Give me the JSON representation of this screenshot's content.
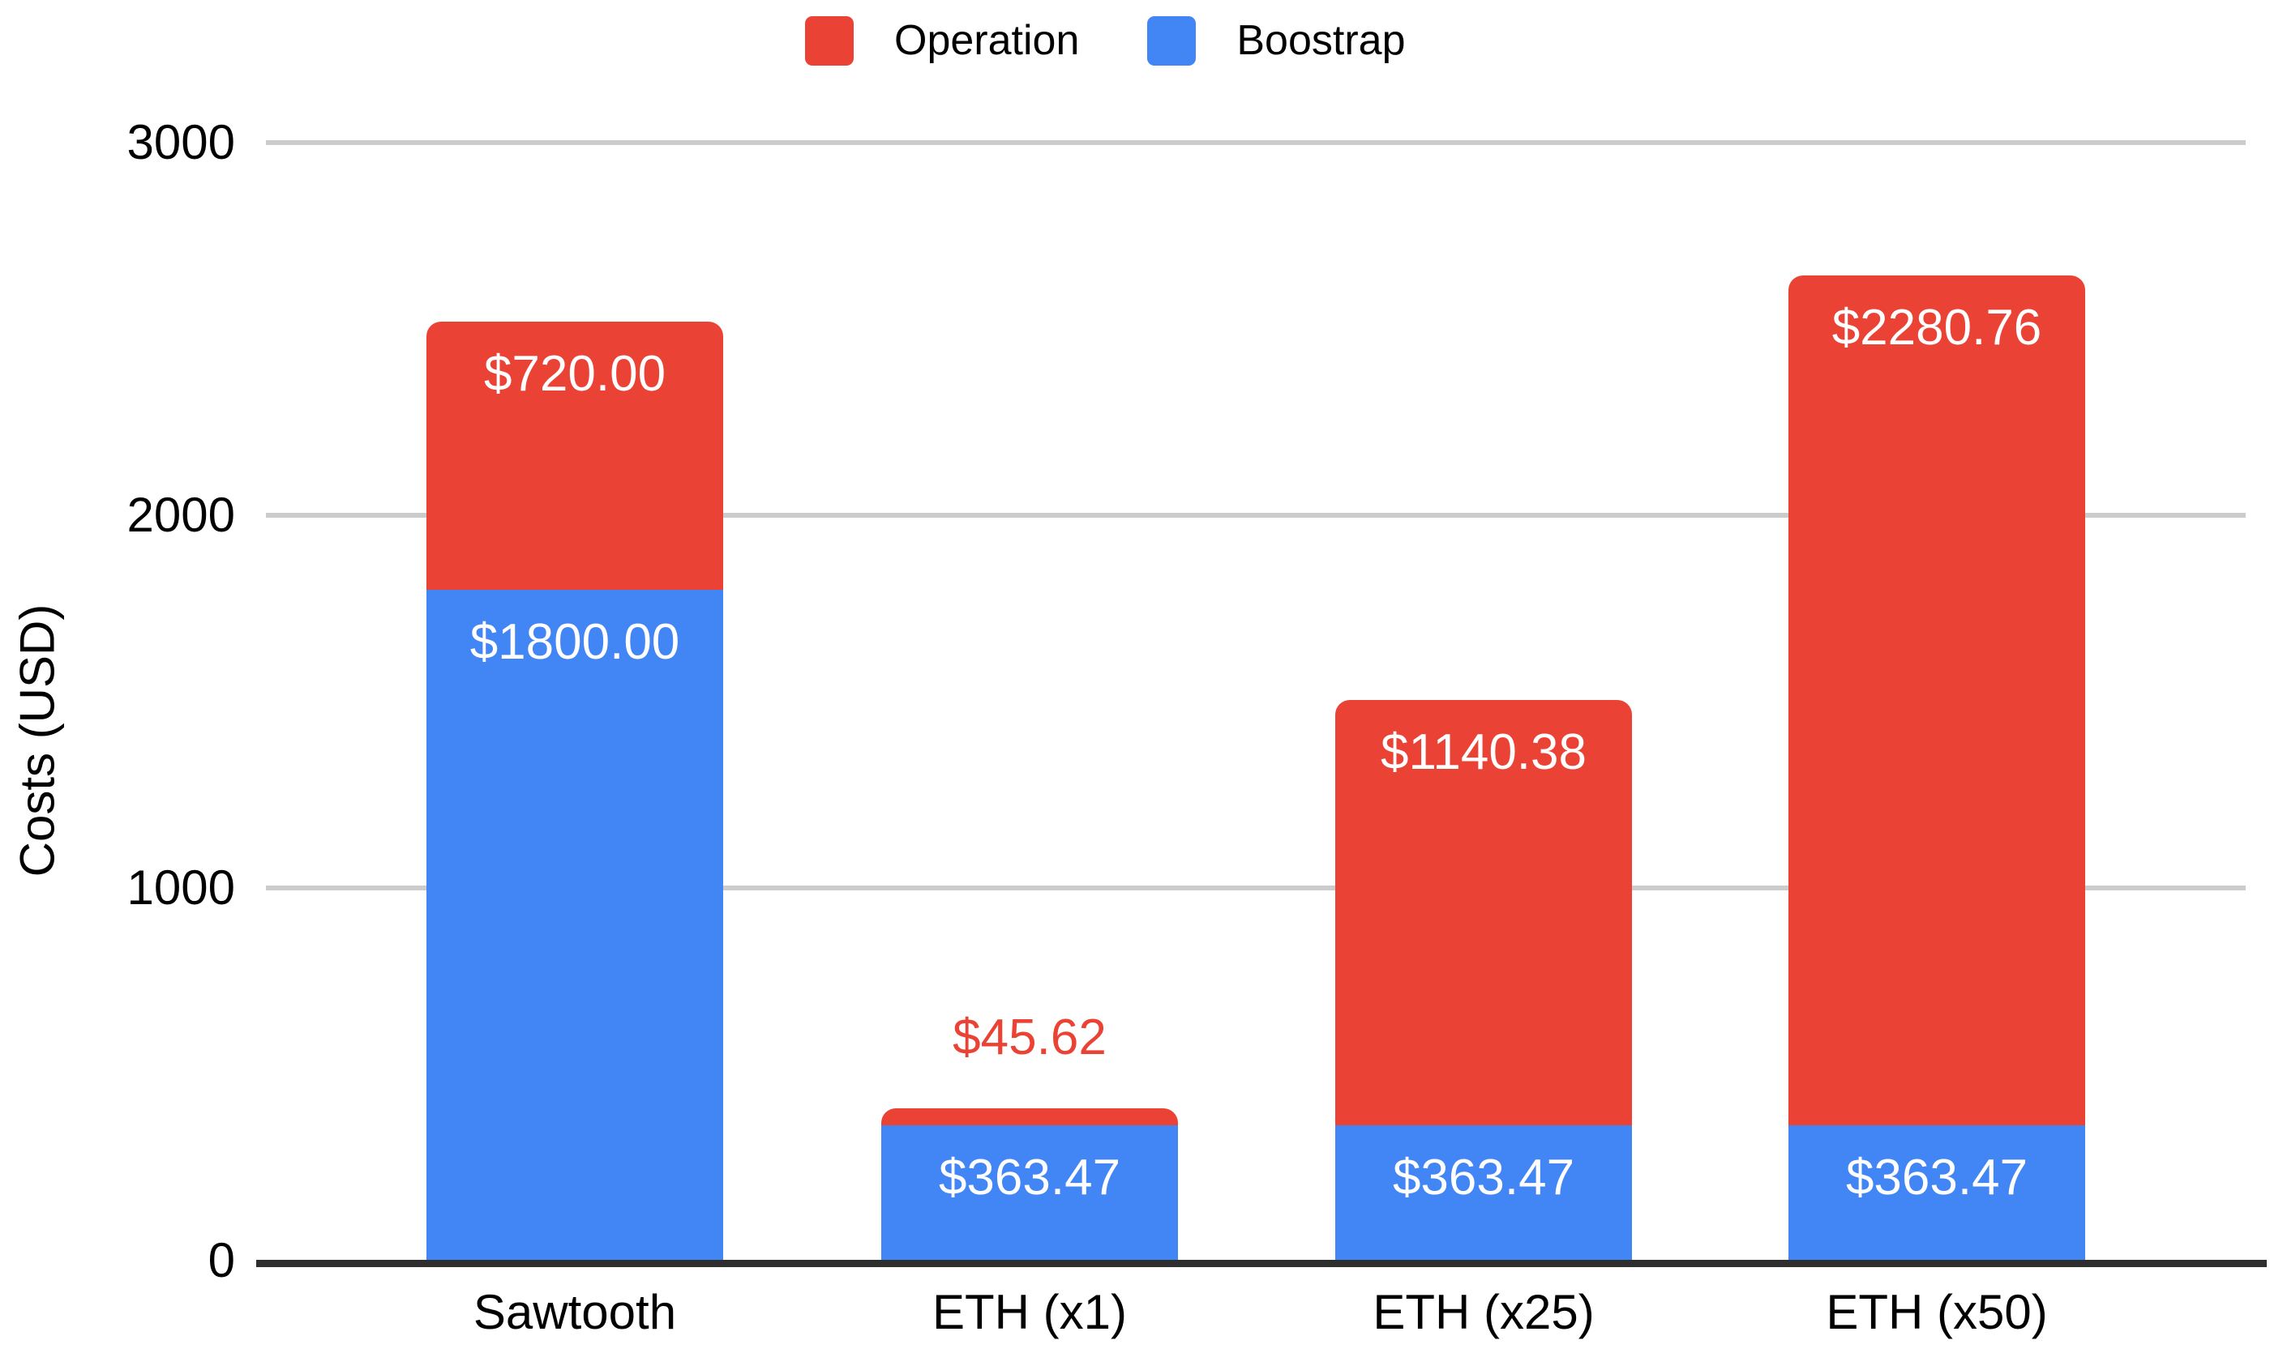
{
  "chart_data": {
    "type": "bar",
    "stacked": true,
    "title": "",
    "xlabel": "",
    "ylabel": "Costs (USD)",
    "categories": [
      "Sawtooth",
      "ETH (x1)",
      "ETH (x25)",
      "ETH (x50)"
    ],
    "series": [
      {
        "name": "Boostrap",
        "color": "#4285F4",
        "values": [
          1800.0,
          363.47,
          363.47,
          363.47
        ],
        "data_labels": [
          "$1800.00",
          "$363.47",
          "$363.47",
          "$363.47"
        ]
      },
      {
        "name": "Operation",
        "color": "#EA4335",
        "values": [
          720.0,
          45.62,
          1140.38,
          2280.76
        ],
        "data_labels": [
          "$720.00",
          "$45.62",
          "$1140.38",
          "$2280.76"
        ]
      }
    ],
    "totals": [
      2520.0,
      409.09,
      1503.85,
      2644.23
    ],
    "ylim": [
      0,
      3000
    ],
    "yticks": [
      0,
      1000,
      2000,
      3000
    ],
    "grid": true,
    "legend": {
      "position": "top",
      "entries": [
        {
          "label": "Operation",
          "color": "#EA4335"
        },
        {
          "label": "Boostrap",
          "color": "#4285F4"
        }
      ]
    },
    "colors": {
      "gridline": "#CCCCCC",
      "axis_line": "#2E2E2E",
      "text": "#000000",
      "label_inside": "#FFFFFF"
    }
  }
}
